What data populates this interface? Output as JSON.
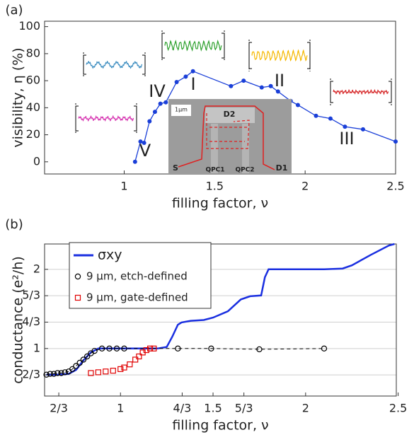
{
  "chart_data": [
    {
      "type": "line",
      "panel_label": "(a)",
      "xlabel": "filling factor, ν",
      "ylabel": "visibility, η (%)",
      "x": [
        1.06,
        1.09,
        1.11,
        1.14,
        1.17,
        1.2,
        1.23,
        1.29,
        1.34,
        1.38,
        1.59,
        1.66,
        1.76,
        1.81,
        1.85,
        1.92,
        1.96,
        2.06,
        2.14,
        2.22,
        2.32,
        2.5
      ],
      "values": [
        0,
        15,
        14,
        30,
        37,
        43,
        44,
        59,
        63,
        67,
        56,
        60,
        55,
        56,
        52,
        45,
        42,
        34,
        32,
        26,
        24,
        15
      ],
      "color": "#1a3fd8",
      "xlim": [
        0.56,
        2.5
      ],
      "ylim": [
        -9,
        104
      ],
      "xticks": [
        1,
        1.5,
        2,
        2.5
      ],
      "yticks": [
        0,
        20,
        40,
        60,
        80,
        100
      ],
      "annotations": [
        {
          "text": "I",
          "color": "#2ca02c"
        },
        {
          "text": "II",
          "color": "#f5b800"
        },
        {
          "text": "III",
          "color": "#d62728"
        },
        {
          "text": "IV",
          "color": "#3c8dc0"
        },
        {
          "text": "V",
          "color": "#d633b0"
        }
      ],
      "inset_labels": [
        "1μm",
        "D2",
        "S",
        "QPC1",
        "QPC2",
        "D1"
      ]
    },
    {
      "type": "line",
      "panel_label": "(b)",
      "xlabel": "filling factor, ν",
      "ylabel": "conductance (e²/h)",
      "xlim": [
        0.59,
        2.49
      ],
      "ylim": [
        0.4,
        2.32
      ],
      "xticks": [
        {
          "value": 0.6667,
          "label": "2/3"
        },
        1,
        {
          "value": 1.3333,
          "label": "4/3"
        },
        1.5,
        {
          "value": 1.6667,
          "label": "5/3"
        },
        2,
        2.5
      ],
      "yticks": [
        {
          "value": 0.6667,
          "label": "2/3"
        },
        1,
        {
          "value": 1.3333,
          "label": "4/3"
        },
        {
          "value": 1.6667,
          "label": "5/3"
        },
        2
      ],
      "grid": true,
      "legend": "upper left",
      "series": [
        {
          "name": "σxy",
          "color": "#1a2fe0",
          "marker": "none",
          "x": [
            0.6,
            0.67,
            0.72,
            0.76,
            0.8,
            0.84,
            0.88,
            1.0,
            1.1,
            1.2,
            1.25,
            1.28,
            1.31,
            1.33,
            1.38,
            1.45,
            1.5,
            1.58,
            1.65,
            1.7,
            1.76,
            1.78,
            1.8,
            1.9,
            2.0,
            2.1,
            2.2,
            2.25,
            2.35,
            2.45,
            2.48
          ],
          "values": [
            0.67,
            0.67,
            0.68,
            0.73,
            0.85,
            0.95,
            1.0,
            1.0,
            1.0,
            1.0,
            1.02,
            1.15,
            1.3,
            1.33,
            1.35,
            1.36,
            1.39,
            1.47,
            1.62,
            1.66,
            1.67,
            1.9,
            2.0,
            2.0,
            2.0,
            2.0,
            2.01,
            2.05,
            2.18,
            2.3,
            2.32
          ]
        },
        {
          "name": "9 μm, etch-defined",
          "color": "#000000",
          "marker": "circle",
          "x": [
            0.6,
            0.62,
            0.64,
            0.66,
            0.68,
            0.7,
            0.72,
            0.74,
            0.76,
            0.78,
            0.8,
            0.82,
            0.84,
            0.86,
            0.9,
            0.94,
            0.98,
            1.02,
            1.31,
            1.49,
            1.75,
            2.1
          ],
          "values": [
            0.67,
            0.68,
            0.68,
            0.69,
            0.69,
            0.7,
            0.71,
            0.74,
            0.78,
            0.82,
            0.86,
            0.9,
            0.94,
            0.97,
            1.0,
            1.0,
            1.0,
            1.0,
            1.0,
            1.0,
            0.99,
            1.0
          ]
        },
        {
          "name": "9 μm, gate-defined",
          "color": "#e00000",
          "marker": "square",
          "x": [
            0.84,
            0.88,
            0.92,
            0.96,
            1.0,
            1.02,
            1.05,
            1.08,
            1.1,
            1.12,
            1.14,
            1.16,
            1.18
          ],
          "values": [
            0.69,
            0.7,
            0.71,
            0.72,
            0.74,
            0.76,
            0.8,
            0.86,
            0.9,
            0.95,
            0.98,
            1.0,
            1.0
          ]
        }
      ]
    }
  ]
}
